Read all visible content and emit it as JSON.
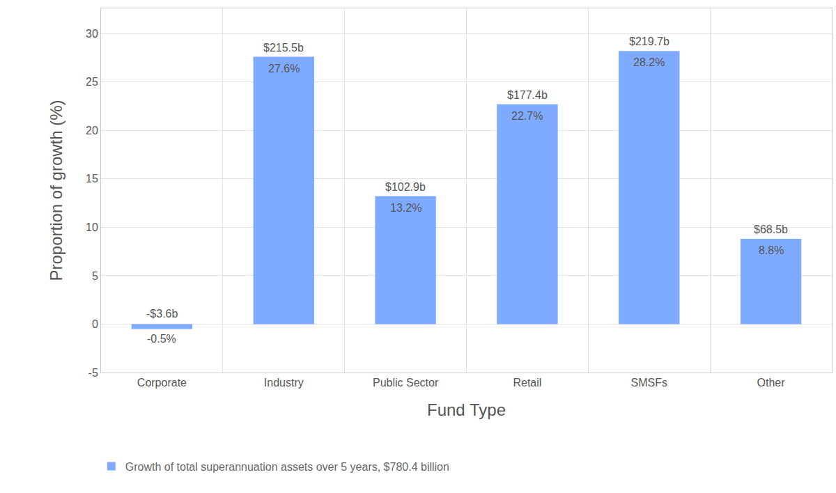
{
  "chart_data": {
    "type": "bar",
    "x_label": "Fund Type",
    "y_label": "Proportion of growth (%)",
    "categories": [
      "Corporate",
      "Industry",
      "Public Sector",
      "Retail",
      "SMSFs",
      "Other"
    ],
    "series": [
      {
        "name": "Growth of total superannuation assets over 5 years, $780.4 billion",
        "color": "#7eaaff",
        "values": [
          -0.5,
          27.6,
          13.2,
          22.7,
          28.2,
          8.8
        ],
        "value_labels": [
          "-0.5%",
          "27.6%",
          "13.2%",
          "22.7%",
          "28.2%",
          "8.8%"
        ],
        "amount_labels": [
          "-$3.6b",
          "$215.5b",
          "$102.9b",
          "$177.4b",
          "$219.7b",
          "$68.5b"
        ]
      }
    ],
    "ylim": [
      -5,
      32.6
    ],
    "yticks": [
      -5,
      0,
      5,
      10,
      15,
      20,
      25,
      30
    ],
    "grid": true,
    "data_labels": true,
    "legend": "bottom"
  }
}
